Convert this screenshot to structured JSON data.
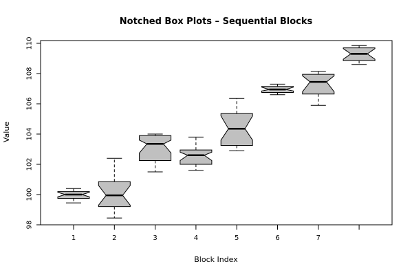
{
  "chart_data": {
    "type": "boxplot",
    "notched": true,
    "title": "Notched Box Plots – Sequential Blocks",
    "xlabel": "Block Index",
    "ylabel": "Value",
    "ylim": [
      98,
      110
    ],
    "yticks": [
      98,
      100,
      102,
      104,
      106,
      108,
      110
    ],
    "xtick_labels": [
      "1",
      "2",
      "3",
      "4",
      "5",
      "6",
      "7",
      ""
    ],
    "box_fill": "#c0c0c0",
    "boxes": [
      {
        "whisker_low": 99.45,
        "q1": 99.75,
        "median": 100.0,
        "q3": 100.2,
        "whisker_high": 100.4,
        "notch_low": 99.85,
        "notch_high": 100.15
      },
      {
        "whisker_low": 98.45,
        "q1": 99.2,
        "median": 99.95,
        "q3": 100.85,
        "whisker_high": 102.4,
        "notch_low": 99.3,
        "notch_high": 100.6
      },
      {
        "whisker_low": 101.5,
        "q1": 102.25,
        "median": 103.35,
        "q3": 103.9,
        "whisker_high": 104.0,
        "notch_low": 102.75,
        "notch_high": 103.6
      },
      {
        "whisker_low": 101.6,
        "q1": 102.0,
        "median": 102.6,
        "q3": 102.95,
        "whisker_high": 103.8,
        "notch_low": 102.25,
        "notch_high": 102.8
      },
      {
        "whisker_low": 102.9,
        "q1": 103.25,
        "median": 104.35,
        "q3": 105.35,
        "whisker_high": 106.35,
        "notch_low": 103.6,
        "notch_high": 105.2
      },
      {
        "whisker_low": 106.6,
        "q1": 106.75,
        "median": 106.95,
        "q3": 107.15,
        "whisker_high": 107.3,
        "notch_low": 106.85,
        "notch_high": 107.1
      },
      {
        "whisker_low": 105.9,
        "q1": 106.65,
        "median": 107.45,
        "q3": 107.95,
        "whisker_high": 108.15,
        "notch_low": 106.8,
        "notch_high": 107.85
      },
      {
        "whisker_low": 108.6,
        "q1": 108.85,
        "median": 109.3,
        "q3": 109.7,
        "whisker_high": 109.85,
        "notch_low": 108.95,
        "notch_high": 109.65
      }
    ]
  }
}
